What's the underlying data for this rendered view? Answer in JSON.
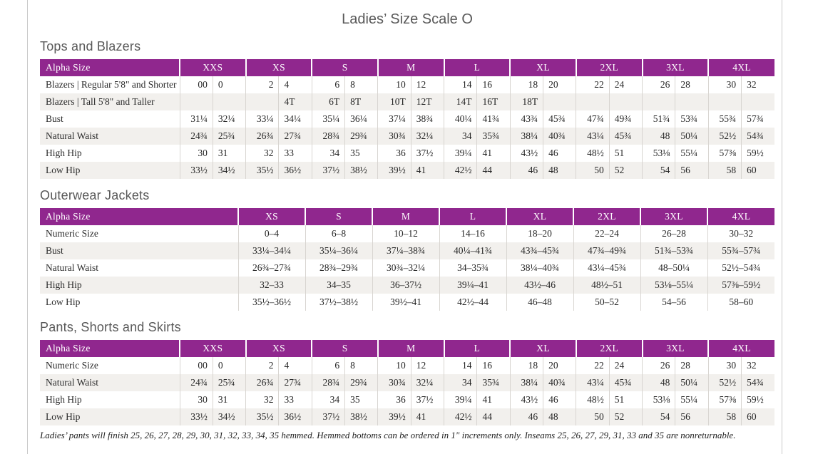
{
  "page": {
    "title": "Ladies’ Size Scale O",
    "footnote": "Ladies’ pants will finish 25, 26, 27, 28, 29, 30, 31, 32, 33, 34, 35 hemmed. Hemmed bottoms can be ordered in 1\" increments only. Inseams 25, 26, 27, 29, 31, 33 and 35 are nonreturnable."
  },
  "colors": {
    "header_purple": "#90278e",
    "row_stripe": "#f2f0ed",
    "heading_gray": "#595959"
  },
  "tables": [
    {
      "id": "tops-and-blazers",
      "section_title": "Tops and Blazers",
      "label_header": "Alpha Size",
      "group_headers": [
        "XXS",
        "XS",
        "S",
        "M",
        "L",
        "XL",
        "2XL",
        "3XL",
        "4XL"
      ],
      "subcols_per_group": 2,
      "rows": [
        {
          "label": "Blazers | Regular 5'8\" and Shorter",
          "cells": [
            "00",
            "0",
            "2",
            "4",
            "6",
            "8",
            "10",
            "12",
            "14",
            "16",
            "18",
            "20",
            "22",
            "24",
            "26",
            "28",
            "30",
            "32"
          ]
        },
        {
          "label": "Blazers | Tall 5'8\" and Taller",
          "cells": [
            "",
            "",
            "",
            "4T",
            "6T",
            "8T",
            "10T",
            "12T",
            "14T",
            "16T",
            "18T",
            "",
            "",
            "",
            "",
            "",
            "",
            ""
          ]
        },
        {
          "label": "Bust",
          "cells": [
            "31¼",
            "32¼",
            "33¼",
            "34¼",
            "35¼",
            "36¼",
            "37¼",
            "38¾",
            "40¼",
            "41¾",
            "43¾",
            "45¾",
            "47¾",
            "49¾",
            "51¾",
            "53¾",
            "55¾",
            "57¾"
          ]
        },
        {
          "label": "Natural Waist",
          "cells": [
            "24¾",
            "25¾",
            "26¾",
            "27¾",
            "28¾",
            "29¾",
            "30¾",
            "32¼",
            "34",
            "35¾",
            "38¼",
            "40¾",
            "43¼",
            "45¾",
            "48",
            "50¼",
            "52½",
            "54¾"
          ]
        },
        {
          "label": "High Hip",
          "cells": [
            "30",
            "31",
            "32",
            "33",
            "34",
            "35",
            "36",
            "37½",
            "39¼",
            "41",
            "43½",
            "46",
            "48½",
            "51",
            "53⅛",
            "55¼",
            "57⅜",
            "59½"
          ]
        },
        {
          "label": "Low Hip",
          "cells": [
            "33½",
            "34½",
            "35½",
            "36½",
            "37½",
            "38½",
            "39½",
            "41",
            "42½",
            "44",
            "46",
            "48",
            "50",
            "52",
            "54",
            "56",
            "58",
            "60"
          ]
        }
      ]
    },
    {
      "id": "outerwear-jackets",
      "section_title": "Outerwear Jackets",
      "label_header": "Alpha Size",
      "group_headers": [
        "XS",
        "S",
        "M",
        "L",
        "XL",
        "2XL",
        "3XL",
        "4XL"
      ],
      "subcols_per_group": 1,
      "rows": [
        {
          "label": "Numeric Size",
          "cells": [
            "0–4",
            "6–8",
            "10–12",
            "14–16",
            "18–20",
            "22–24",
            "26–28",
            "30–32"
          ]
        },
        {
          "label": "Bust",
          "cells": [
            "33¼–34¼",
            "35¼–36¼",
            "37¼–38¾",
            "40¼–41¾",
            "43¾–45¾",
            "47¾–49¾",
            "51¾–53¾",
            "55¾–57¾"
          ]
        },
        {
          "label": "Natural Waist",
          "cells": [
            "26¾–27¾",
            "28¾–29¾",
            "30¾–32¼",
            "34–35¾",
            "38¼–40¾",
            "43¼–45¾",
            "48–50¼",
            "52½–54¾"
          ]
        },
        {
          "label": "High Hip",
          "cells": [
            "32–33",
            "34–35",
            "36–37½",
            "39¼–41",
            "43½–46",
            "48½–51",
            "53⅛–55¼",
            "57⅜–59½"
          ]
        },
        {
          "label": "Low Hip",
          "cells": [
            "35½–36½",
            "37½–38½",
            "39½–41",
            "42½–44",
            "46–48",
            "50–52",
            "54–56",
            "58–60"
          ]
        }
      ]
    },
    {
      "id": "pants-shorts-skirts",
      "section_title": "Pants, Shorts and Skirts",
      "label_header": "Alpha Size",
      "group_headers": [
        "XXS",
        "XS",
        "S",
        "M",
        "L",
        "XL",
        "2XL",
        "3XL",
        "4XL"
      ],
      "subcols_per_group": 2,
      "rows": [
        {
          "label": "Numeric Size",
          "cells": [
            "00",
            "0",
            "2",
            "4",
            "6",
            "8",
            "10",
            "12",
            "14",
            "16",
            "18",
            "20",
            "22",
            "24",
            "26",
            "28",
            "30",
            "32"
          ]
        },
        {
          "label": "Natural Waist",
          "cells": [
            "24¾",
            "25¾",
            "26¾",
            "27¾",
            "28¾",
            "29¾",
            "30¾",
            "32¼",
            "34",
            "35¾",
            "38¼",
            "40¾",
            "43¼",
            "45¾",
            "48",
            "50¼",
            "52½",
            "54¾"
          ]
        },
        {
          "label": "High Hip",
          "cells": [
            "30",
            "31",
            "32",
            "33",
            "34",
            "35",
            "36",
            "37½",
            "39¼",
            "41",
            "43½",
            "46",
            "48½",
            "51",
            "53⅛",
            "55¼",
            "57⅜",
            "59½"
          ]
        },
        {
          "label": "Low Hip",
          "cells": [
            "33½",
            "34½",
            "35½",
            "36½",
            "37½",
            "38½",
            "39½",
            "41",
            "42½",
            "44",
            "46",
            "48",
            "50",
            "52",
            "54",
            "56",
            "58",
            "60"
          ]
        }
      ]
    }
  ]
}
